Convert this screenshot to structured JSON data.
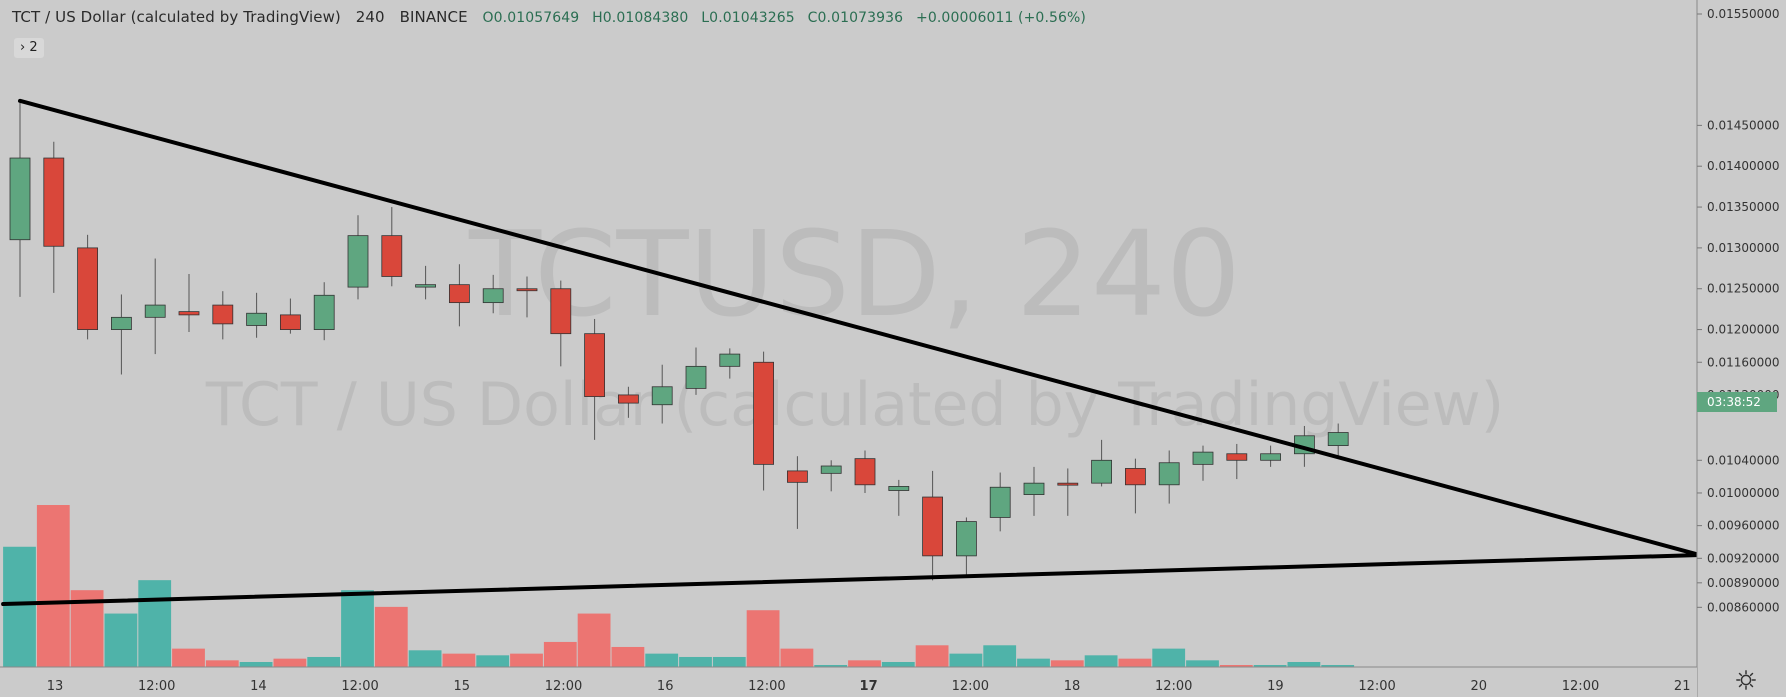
{
  "header": {
    "symbol_title": "TCT / US Dollar (calculated by TradingView)",
    "interval": "240",
    "exchange": "BINANCE",
    "open": "O0.01057649",
    "high": "H0.01084380",
    "low": "L0.01043265",
    "close": "C0.01073936",
    "change": "+0.00006011 (+0.56%)",
    "indicator_toggle": "› 2"
  },
  "watermark": {
    "big": "TCTUSD, 240",
    "sub": "TCT / US Dollar (calculated by TradingView)"
  },
  "price_axis": {
    "labels": [
      "0.01550000",
      "0.01450000",
      "0.01400000",
      "0.01350000",
      "0.01300000",
      "0.01250000",
      "0.01200000",
      "0.01160000",
      "0.01120000",
      "0.01040000",
      "0.01000000",
      "0.00960000",
      "0.00920000",
      "0.00890000",
      "0.00860000"
    ],
    "countdown": "03:38:52"
  },
  "time_axis": {
    "labels": [
      "13",
      "12:00",
      "14",
      "12:00",
      "15",
      "12:00",
      "16",
      "12:00",
      "17",
      "12:00",
      "18",
      "12:00",
      "19",
      "12:00",
      "20",
      "12:00",
      "21"
    ],
    "bold_label": "17"
  },
  "colors": {
    "background": "#cbcbcb",
    "up": "#5fa680",
    "down": "#d9473a",
    "vol_up": "#4fb3a9",
    "vol_down": "#ec7572",
    "trendline": "#000000",
    "countdown_bg": "#5fa680"
  },
  "chart_data": {
    "type": "candlestick",
    "title": "TCT / US Dollar (calculated by TradingView)",
    "interval": "240",
    "ylim": [
      0.0082,
      0.0159
    ],
    "candles": [
      {
        "o": 0.0131,
        "h": 0.0148,
        "l": 0.0124,
        "c": 0.0141
      },
      {
        "o": 0.0141,
        "h": 0.0143,
        "l": 0.01245,
        "c": 0.01302
      },
      {
        "o": 0.013,
        "h": 0.01316,
        "l": 0.01188,
        "c": 0.012
      },
      {
        "o": 0.012,
        "h": 0.01243,
        "l": 0.01145,
        "c": 0.01215
      },
      {
        "o": 0.01215,
        "h": 0.01287,
        "l": 0.0117,
        "c": 0.0123
      },
      {
        "o": 0.01222,
        "h": 0.01268,
        "l": 0.01197,
        "c": 0.01218
      },
      {
        "o": 0.0123,
        "h": 0.01247,
        "l": 0.01188,
        "c": 0.01207
      },
      {
        "o": 0.01205,
        "h": 0.01245,
        "l": 0.0119,
        "c": 0.0122
      },
      {
        "o": 0.01218,
        "h": 0.01238,
        "l": 0.01195,
        "c": 0.012
      },
      {
        "o": 0.012,
        "h": 0.01258,
        "l": 0.01187,
        "c": 0.01242
      },
      {
        "o": 0.01252,
        "h": 0.0134,
        "l": 0.01237,
        "c": 0.01315
      },
      {
        "o": 0.01315,
        "h": 0.0135,
        "l": 0.01253,
        "c": 0.01265
      },
      {
        "o": 0.01252,
        "h": 0.01278,
        "l": 0.01237,
        "c": 0.01255
      },
      {
        "o": 0.01255,
        "h": 0.0128,
        "l": 0.01204,
        "c": 0.01233
      },
      {
        "o": 0.01233,
        "h": 0.01267,
        "l": 0.0122,
        "c": 0.0125
      },
      {
        "o": 0.0125,
        "h": 0.01265,
        "l": 0.01215,
        "c": 0.01248
      },
      {
        "o": 0.0125,
        "h": 0.0126,
        "l": 0.01155,
        "c": 0.01195
      },
      {
        "o": 0.01195,
        "h": 0.01213,
        "l": 0.01065,
        "c": 0.01118
      },
      {
        "o": 0.0112,
        "h": 0.0113,
        "l": 0.01092,
        "c": 0.0111
      },
      {
        "o": 0.01108,
        "h": 0.01157,
        "l": 0.01085,
        "c": 0.0113
      },
      {
        "o": 0.01128,
        "h": 0.01178,
        "l": 0.0112,
        "c": 0.01155
      },
      {
        "o": 0.01155,
        "h": 0.01177,
        "l": 0.0114,
        "c": 0.0117
      },
      {
        "o": 0.0116,
        "h": 0.01173,
        "l": 0.01003,
        "c": 0.01035
      },
      {
        "o": 0.01027,
        "h": 0.01045,
        "l": 0.00956,
        "c": 0.01013
      },
      {
        "o": 0.01024,
        "h": 0.0104,
        "l": 0.01002,
        "c": 0.01033
      },
      {
        "o": 0.01042,
        "h": 0.01052,
        "l": 0.01,
        "c": 0.0101
      },
      {
        "o": 0.01003,
        "h": 0.01016,
        "l": 0.00972,
        "c": 0.01008
      },
      {
        "o": 0.00995,
        "h": 0.01027,
        "l": 0.00893,
        "c": 0.00923
      },
      {
        "o": 0.00923,
        "h": 0.0097,
        "l": 0.00897,
        "c": 0.00965
      },
      {
        "o": 0.0097,
        "h": 0.01025,
        "l": 0.00953,
        "c": 0.01007
      },
      {
        "o": 0.00998,
        "h": 0.01032,
        "l": 0.00972,
        "c": 0.01012
      },
      {
        "o": 0.01012,
        "h": 0.0103,
        "l": 0.00972,
        "c": 0.0101
      },
      {
        "o": 0.01012,
        "h": 0.01065,
        "l": 0.01008,
        "c": 0.0104
      },
      {
        "o": 0.0103,
        "h": 0.01042,
        "l": 0.00975,
        "c": 0.0101
      },
      {
        "o": 0.0101,
        "h": 0.01052,
        "l": 0.00987,
        "c": 0.01037
      },
      {
        "o": 0.01035,
        "h": 0.01058,
        "l": 0.01015,
        "c": 0.0105
      },
      {
        "o": 0.01048,
        "h": 0.0106,
        "l": 0.01017,
        "c": 0.0104
      },
      {
        "o": 0.0104,
        "h": 0.01058,
        "l": 0.01032,
        "c": 0.01048
      },
      {
        "o": 0.01048,
        "h": 0.01082,
        "l": 0.01032,
        "c": 0.0107
      },
      {
        "o": 0.01058,
        "h": 0.01085,
        "l": 0.01043,
        "c": 0.01074
      }
    ],
    "volume": [
      {
        "v": 0.72,
        "up": true
      },
      {
        "v": 0.97,
        "up": false
      },
      {
        "v": 0.46,
        "up": false
      },
      {
        "v": 0.32,
        "up": true
      },
      {
        "v": 0.52,
        "up": true
      },
      {
        "v": 0.11,
        "up": false
      },
      {
        "v": 0.04,
        "up": false
      },
      {
        "v": 0.03,
        "up": true
      },
      {
        "v": 0.05,
        "up": false
      },
      {
        "v": 0.06,
        "up": true
      },
      {
        "v": 0.46,
        "up": true
      },
      {
        "v": 0.36,
        "up": false
      },
      {
        "v": 0.1,
        "up": true
      },
      {
        "v": 0.08,
        "up": false
      },
      {
        "v": 0.07,
        "up": true
      },
      {
        "v": 0.08,
        "up": false
      },
      {
        "v": 0.15,
        "up": false
      },
      {
        "v": 0.32,
        "up": false
      },
      {
        "v": 0.12,
        "up": false
      },
      {
        "v": 0.08,
        "up": true
      },
      {
        "v": 0.06,
        "up": true
      },
      {
        "v": 0.06,
        "up": true
      },
      {
        "v": 0.34,
        "up": false
      },
      {
        "v": 0.11,
        "up": false
      },
      {
        "v": 0.01,
        "up": true
      },
      {
        "v": 0.04,
        "up": false
      },
      {
        "v": 0.03,
        "up": true
      },
      {
        "v": 0.13,
        "up": false
      },
      {
        "v": 0.08,
        "up": true
      },
      {
        "v": 0.13,
        "up": true
      },
      {
        "v": 0.05,
        "up": true
      },
      {
        "v": 0.04,
        "up": false
      },
      {
        "v": 0.07,
        "up": true
      },
      {
        "v": 0.05,
        "up": false
      },
      {
        "v": 0.11,
        "up": true
      },
      {
        "v": 0.04,
        "up": true
      },
      {
        "v": 0.01,
        "up": false
      },
      {
        "v": 0.01,
        "up": true
      },
      {
        "v": 0.03,
        "up": true
      },
      {
        "v": 0.01,
        "up": true
      }
    ],
    "trendlines": [
      {
        "name": "upper",
        "from": {
          "bar": 0,
          "price": 0.0148
        },
        "to": {
          "bar": 49.7,
          "price": 0.00924
        }
      },
      {
        "name": "lower",
        "from": {
          "bar": -0.5,
          "price": 0.00864
        },
        "to": {
          "bar": 49.7,
          "price": 0.00924
        }
      }
    ]
  }
}
